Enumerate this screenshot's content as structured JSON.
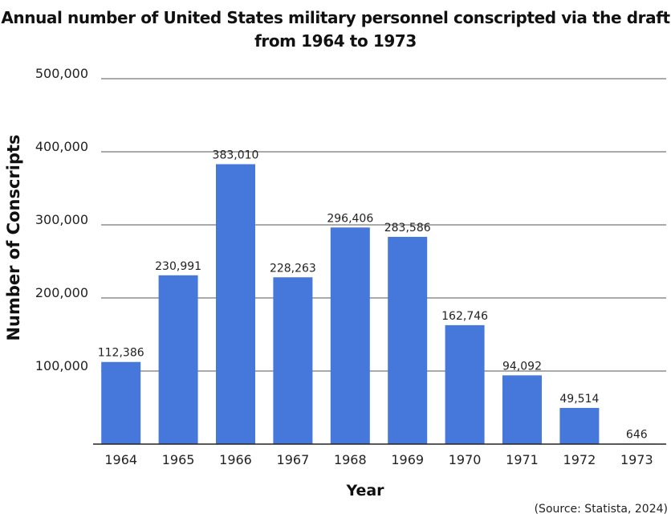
{
  "chart_data": {
    "type": "bar",
    "title": "Annual number of United States military personnel conscripted via the draft from 1964 to 1973",
    "xlabel": "Year",
    "ylabel": "Number of Conscripts",
    "categories": [
      "1964",
      "1965",
      "1966",
      "1967",
      "1968",
      "1969",
      "1970",
      "1971",
      "1972",
      "1973"
    ],
    "values": [
      112386,
      230991,
      383010,
      228263,
      296406,
      283586,
      162746,
      94092,
      49514,
      646
    ],
    "data_labels": [
      "112,386",
      "230,991",
      "383,010",
      "228,263",
      "296,406",
      "283,586",
      "162,746",
      "94,092",
      "49,514",
      "646"
    ],
    "ylim": [
      0,
      500000
    ],
    "yticks": [
      100000,
      200000,
      300000,
      400000,
      500000
    ],
    "ytick_labels": [
      "100,000",
      "200,000",
      "300,000",
      "400,000",
      "500,000"
    ],
    "grid": true,
    "legend": "none",
    "bar_color": "#4677DB",
    "source": "(Source: Statista, 2024)"
  }
}
